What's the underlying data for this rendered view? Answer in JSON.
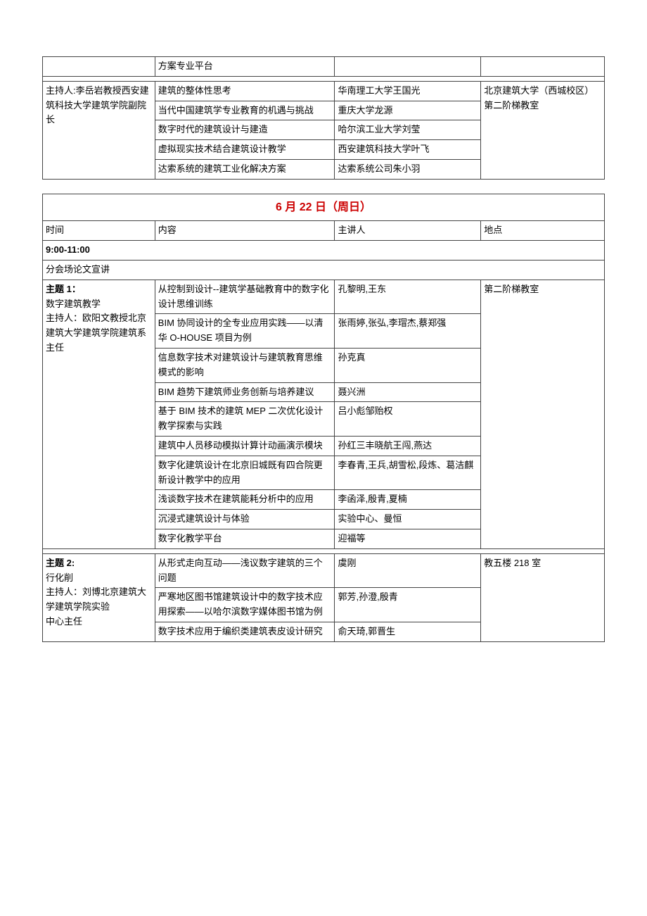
{
  "table1": {
    "fragmentRow": {
      "col2": "方案专业平台"
    },
    "hostCell": "主持人:李岳岩教授西安建筑科技大学建筑学院副院长",
    "venueCell": "北京建筑大学（西城校区）第二阶梯教室",
    "rows": [
      {
        "content": "建筑的整体性思考",
        "speaker": "华南理工大学王国光"
      },
      {
        "content": "当代中国建筑学专业教育的机遇与挑战",
        "speaker": "重庆大学龙源"
      },
      {
        "content": "数字时代的建筑设计与建造",
        "speaker": "哈尔滨工业大学刘莹"
      },
      {
        "content": "虚拟现实技术结合建筑设计教学",
        "speaker": "西安建筑科技大学叶飞"
      },
      {
        "content": "达索系统的建筑工业化解决方案",
        "speaker": "达索系统公司朱小羽"
      }
    ]
  },
  "table2": {
    "title": "6 月 22 日（周日）",
    "headers": {
      "time": "时间",
      "content": "内容",
      "speaker": "主讲人",
      "venue": "地点"
    },
    "timeSlot": "9:00-11:00",
    "sectionLabel": "分会场论文宣讲",
    "topic1": {
      "titleLines": [
        "主题 1：",
        "数字建筑教学",
        "主持人：欧阳文教授北京建筑大学建筑学院建筑系主任"
      ],
      "venue": "第二阶梯教室",
      "rows": [
        {
          "content": "从控制到设计--建筑学基础教育中的数字化设计思维训练",
          "speaker": "孔黎明,王东"
        },
        {
          "content": "BIM 协同设计的全专业应用实践——以清华 O-HOUSE 项目为例",
          "speaker": "张雨婷,张弘,李瑁杰,蔡郑强"
        },
        {
          "content": "信息数字技术对建筑设计与建筑教育思维模式的影响",
          "speaker": "孙克真"
        },
        {
          "content": "BIM 趋势下建筑师业务创新与培养建议",
          "speaker": "聂兴洲"
        },
        {
          "content": "基于 BIM 技术的建筑 MEP 二次优化设计教学探索与实践",
          "speaker": "吕小彪邹贻权"
        },
        {
          "content": "建筑中人员移动模拟计算计动画演示模块",
          "speaker": "孙红三丰晓航王闯,燕达"
        },
        {
          "content": "数字化建筑设计在北京旧城既有四合院更新设计教学中的应用",
          "speaker": "李春青,王兵,胡雪松,段炼、葛洁麒"
        },
        {
          "content": "浅谈数字技术在建筑能耗分析中的应用",
          "speaker": "李函泽,殷青,夏楠"
        },
        {
          "content": "沉浸式建筑设计与体验",
          "speaker": "实验中心、曼恒"
        },
        {
          "content": "数字化教学平台",
          "speaker": "迎福等"
        }
      ]
    },
    "topic2": {
      "titleLines": [
        "主题 2:",
        "行化削",
        "主持人：刘博北京建筑大学建筑学院实验",
        "中心主任"
      ],
      "venue": "教五楼 218 室",
      "rows": [
        {
          "content": "从形式走向互动——浅议数字建筑的三个问题",
          "speaker": "虞刚"
        },
        {
          "content": "严寒地区图书馆建筑设计中的数字技术应用探索——以哈尔滨数字媒体图书馆为例",
          "speaker": "郭芳,孙澄,殷青"
        },
        {
          "content": "数字技术应用于编织类建筑表皮设计研究",
          "speaker": "俞天琦,郭晋生"
        }
      ]
    }
  },
  "colors": {
    "titleColor": "#cc0000",
    "borderColor": "#444444",
    "bgColor": "#ffffff",
    "textColor": "#000000"
  }
}
